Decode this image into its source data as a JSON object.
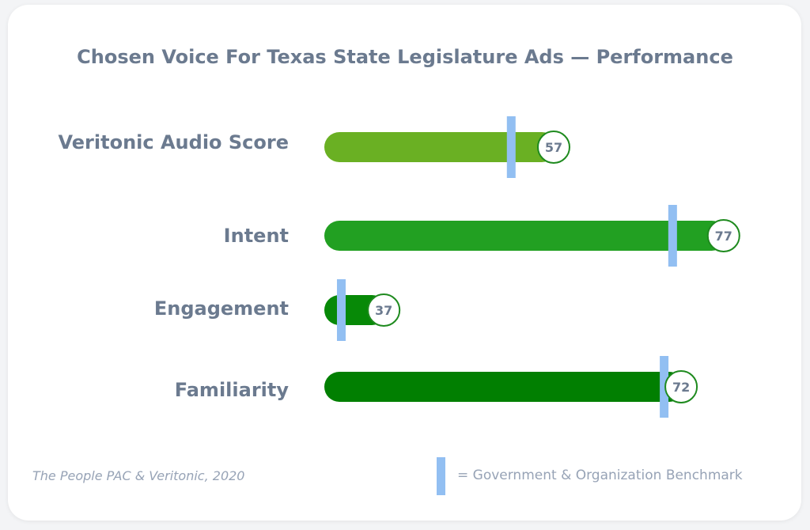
{
  "chart_data": {
    "type": "bar",
    "orientation": "horizontal",
    "title": "Chosen Voice For Texas State Legislature Ads — Performance",
    "categories": [
      "Veritonic Audio Score",
      "Intent",
      "Engagement",
      "Familiarity"
    ],
    "values": [
      57,
      77,
      37,
      72
    ],
    "benchmarks": [
      52,
      71,
      32,
      70
    ],
    "bar_colors": [
      "#6ab023",
      "#22a022",
      "#078907",
      "#017f01"
    ],
    "benchmark_color": "#92bff2",
    "xlim": [
      30,
      80
    ],
    "source": "The People PAC & Veritonic, 2020",
    "legend": "= Government & Organization Benchmark"
  }
}
